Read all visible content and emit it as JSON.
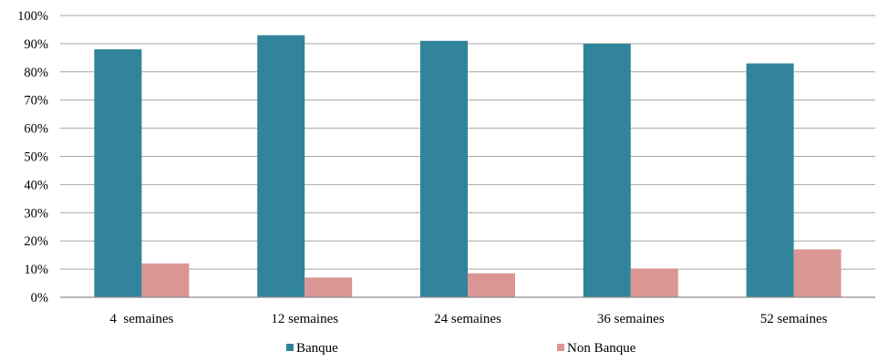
{
  "chart_data": {
    "type": "bar",
    "categories": [
      "4  semaines",
      "12 semaines",
      "24 semaines",
      "36 semaines",
      "52 semaines"
    ],
    "series": [
      {
        "name": "Banque",
        "values": [
          88,
          93,
          91,
          90,
          83
        ],
        "color": "#31849b"
      },
      {
        "name": "Non Banque",
        "values": [
          12,
          7,
          8.5,
          10.2,
          17
        ],
        "color": "#da9694"
      }
    ],
    "y_ticks": [
      "0%",
      "10%",
      "20%",
      "30%",
      "40%",
      "50%",
      "60%",
      "70%",
      "80%",
      "90%",
      "100%"
    ],
    "ylim": [
      0,
      100
    ],
    "grid": true,
    "legend_position": "bottom",
    "gridline_color": "#a6a6a6",
    "axis_color": "#8c8c8c"
  }
}
